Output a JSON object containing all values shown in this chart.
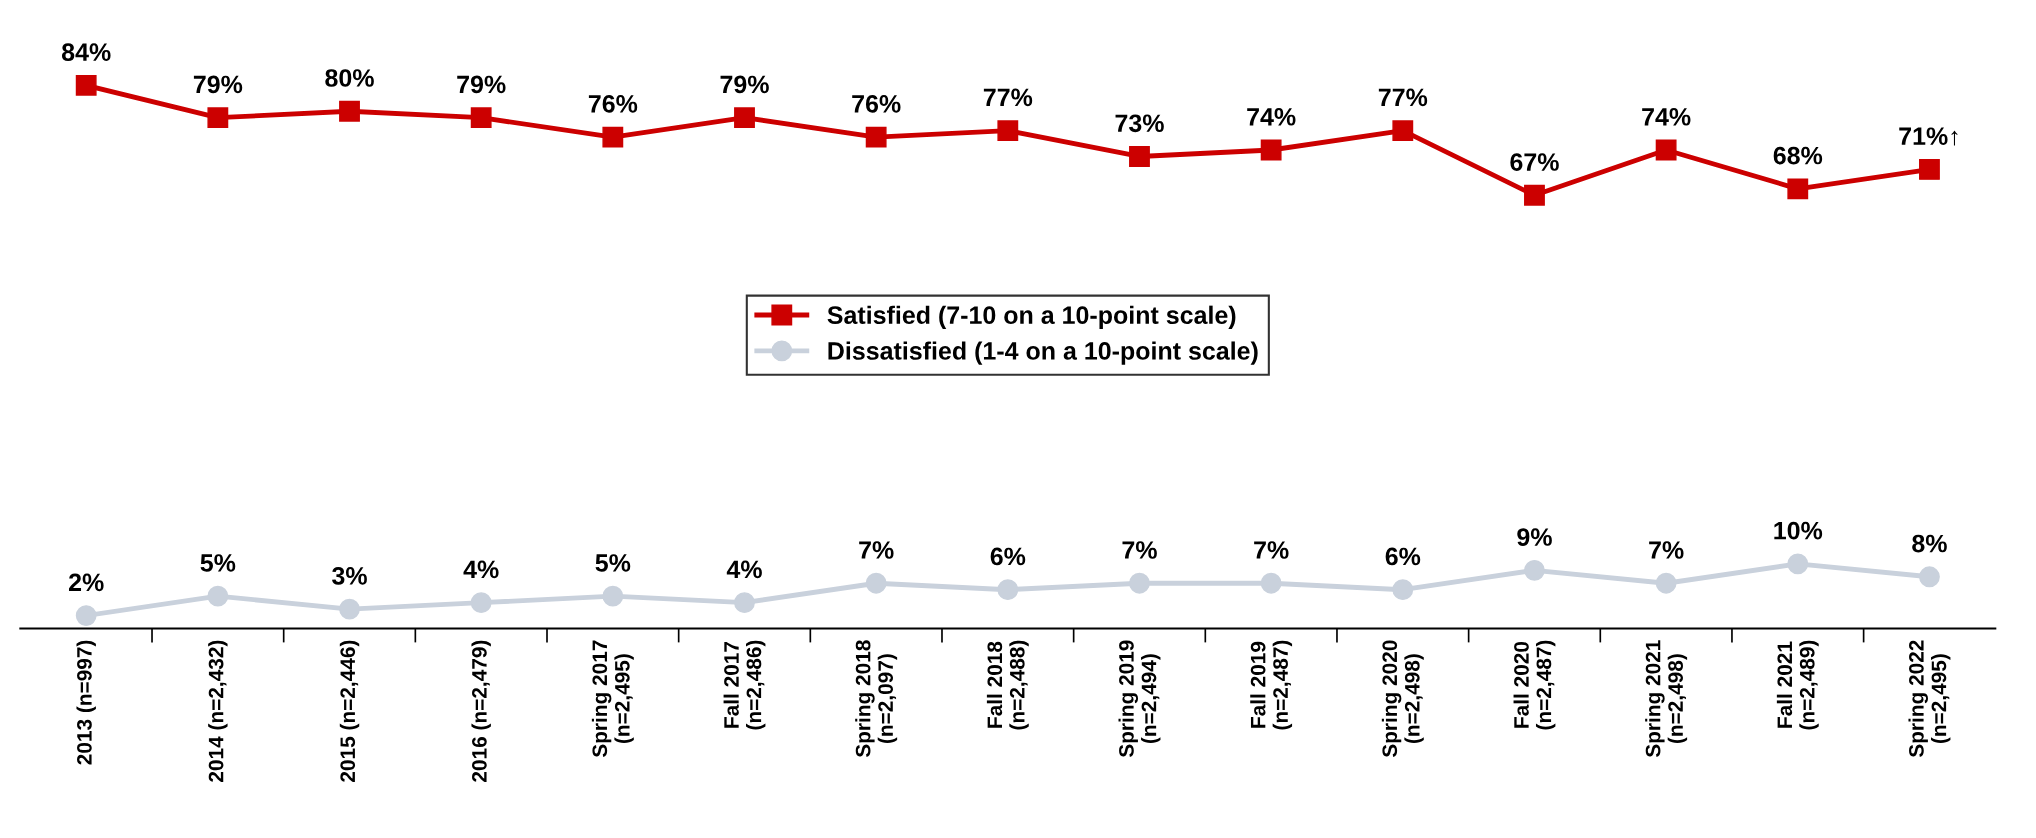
{
  "chart_data": {
    "type": "line",
    "categories": [
      "2013 (n=997)",
      "2014 (n=2,432)",
      "2015 (n=2,446)",
      "2016 (n=2,479)",
      "Spring 2017\n(n=2,495)",
      "Fall 2017\n(n=2,486)",
      "Spring 2018\n(n=2,097)",
      "Fall 2018\n(n=2,488)",
      "Spring 2019\n(n=2,494)",
      "Fall 2019\n(n=2,487)",
      "Spring 2020\n(n=2,498)",
      "Fall 2020\n(n=2,487)",
      "Spring 2021\n(n=2,498)",
      "Fall 2021\n(n=2,489)",
      "Spring 2022\n(n=2,495)"
    ],
    "series": [
      {
        "name": "Satisfied (7-10 on a 10-point scale)",
        "color": "#cc0000",
        "marker": "square",
        "values": [
          84,
          79,
          80,
          79,
          76,
          79,
          76,
          77,
          73,
          74,
          77,
          67,
          74,
          68,
          71
        ],
        "value_labels": [
          "84%",
          "79%",
          "80%",
          "79%",
          "76%",
          "79%",
          "76%",
          "77%",
          "73%",
          "74%",
          "77%",
          "67%",
          "74%",
          "68%",
          "71%↑"
        ]
      },
      {
        "name": "Dissatisfied (1-4 on a 10-point scale)",
        "color": "#c9d1dc",
        "marker": "circle",
        "values": [
          2,
          5,
          3,
          4,
          5,
          4,
          7,
          6,
          7,
          7,
          6,
          9,
          7,
          10,
          8
        ],
        "value_labels": [
          "2%",
          "5%",
          "3%",
          "4%",
          "5%",
          "4%",
          "7%",
          "6%",
          "7%",
          "7%",
          "6%",
          "9%",
          "7%",
          "10%",
          "8%"
        ]
      }
    ],
    "legend": "center",
    "grid": false
  }
}
